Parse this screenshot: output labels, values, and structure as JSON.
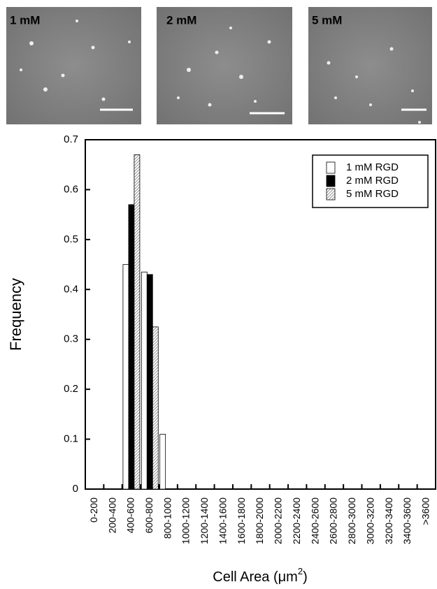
{
  "images": [
    {
      "label": "1 mM"
    },
    {
      "label": "2 mM"
    },
    {
      "label": "5 mM"
    }
  ],
  "chart_data": {
    "type": "bar",
    "y_label": "Frequency",
    "x_label": {
      "text": "Cell Area (μm",
      "sup": "2",
      "end": ")"
    },
    "categories": [
      "0-200",
      "200-400",
      "400-600",
      "600-800",
      "800-1000",
      "1000-1200",
      "1200-1400",
      "1400-1600",
      "1600-1800",
      "1800-2000",
      "2000-2200",
      "2200-2400",
      "2400-2600",
      "2600-2800",
      "2800-3000",
      "3000-3200",
      "3200-3400",
      "3400-3600",
      ">3600"
    ],
    "series": [
      {
        "name": "1 mM RGD",
        "color": "#ffffff",
        "values": [
          0,
          0,
          0.45,
          0.435,
          0.11,
          0,
          0,
          0,
          0,
          0,
          0,
          0,
          0,
          0,
          0,
          0,
          0,
          0,
          0
        ]
      },
      {
        "name": "2 mM RGD",
        "color": "#000000",
        "values": [
          0,
          0,
          0.57,
          0.43,
          0,
          0,
          0,
          0,
          0,
          0,
          0,
          0,
          0,
          0,
          0,
          0,
          0,
          0,
          0
        ]
      },
      {
        "name": "5 mM RGD",
        "color": "hatched",
        "values": [
          0,
          0,
          0.67,
          0.325,
          0,
          0,
          0,
          0,
          0,
          0,
          0,
          0,
          0,
          0,
          0,
          0,
          0,
          0,
          0
        ]
      }
    ],
    "ylim": [
      0,
      0.7
    ],
    "yticks": [
      0,
      0.1,
      0.2,
      0.3,
      0.4,
      0.5,
      0.6,
      0.7
    ],
    "legend": "upper right"
  }
}
